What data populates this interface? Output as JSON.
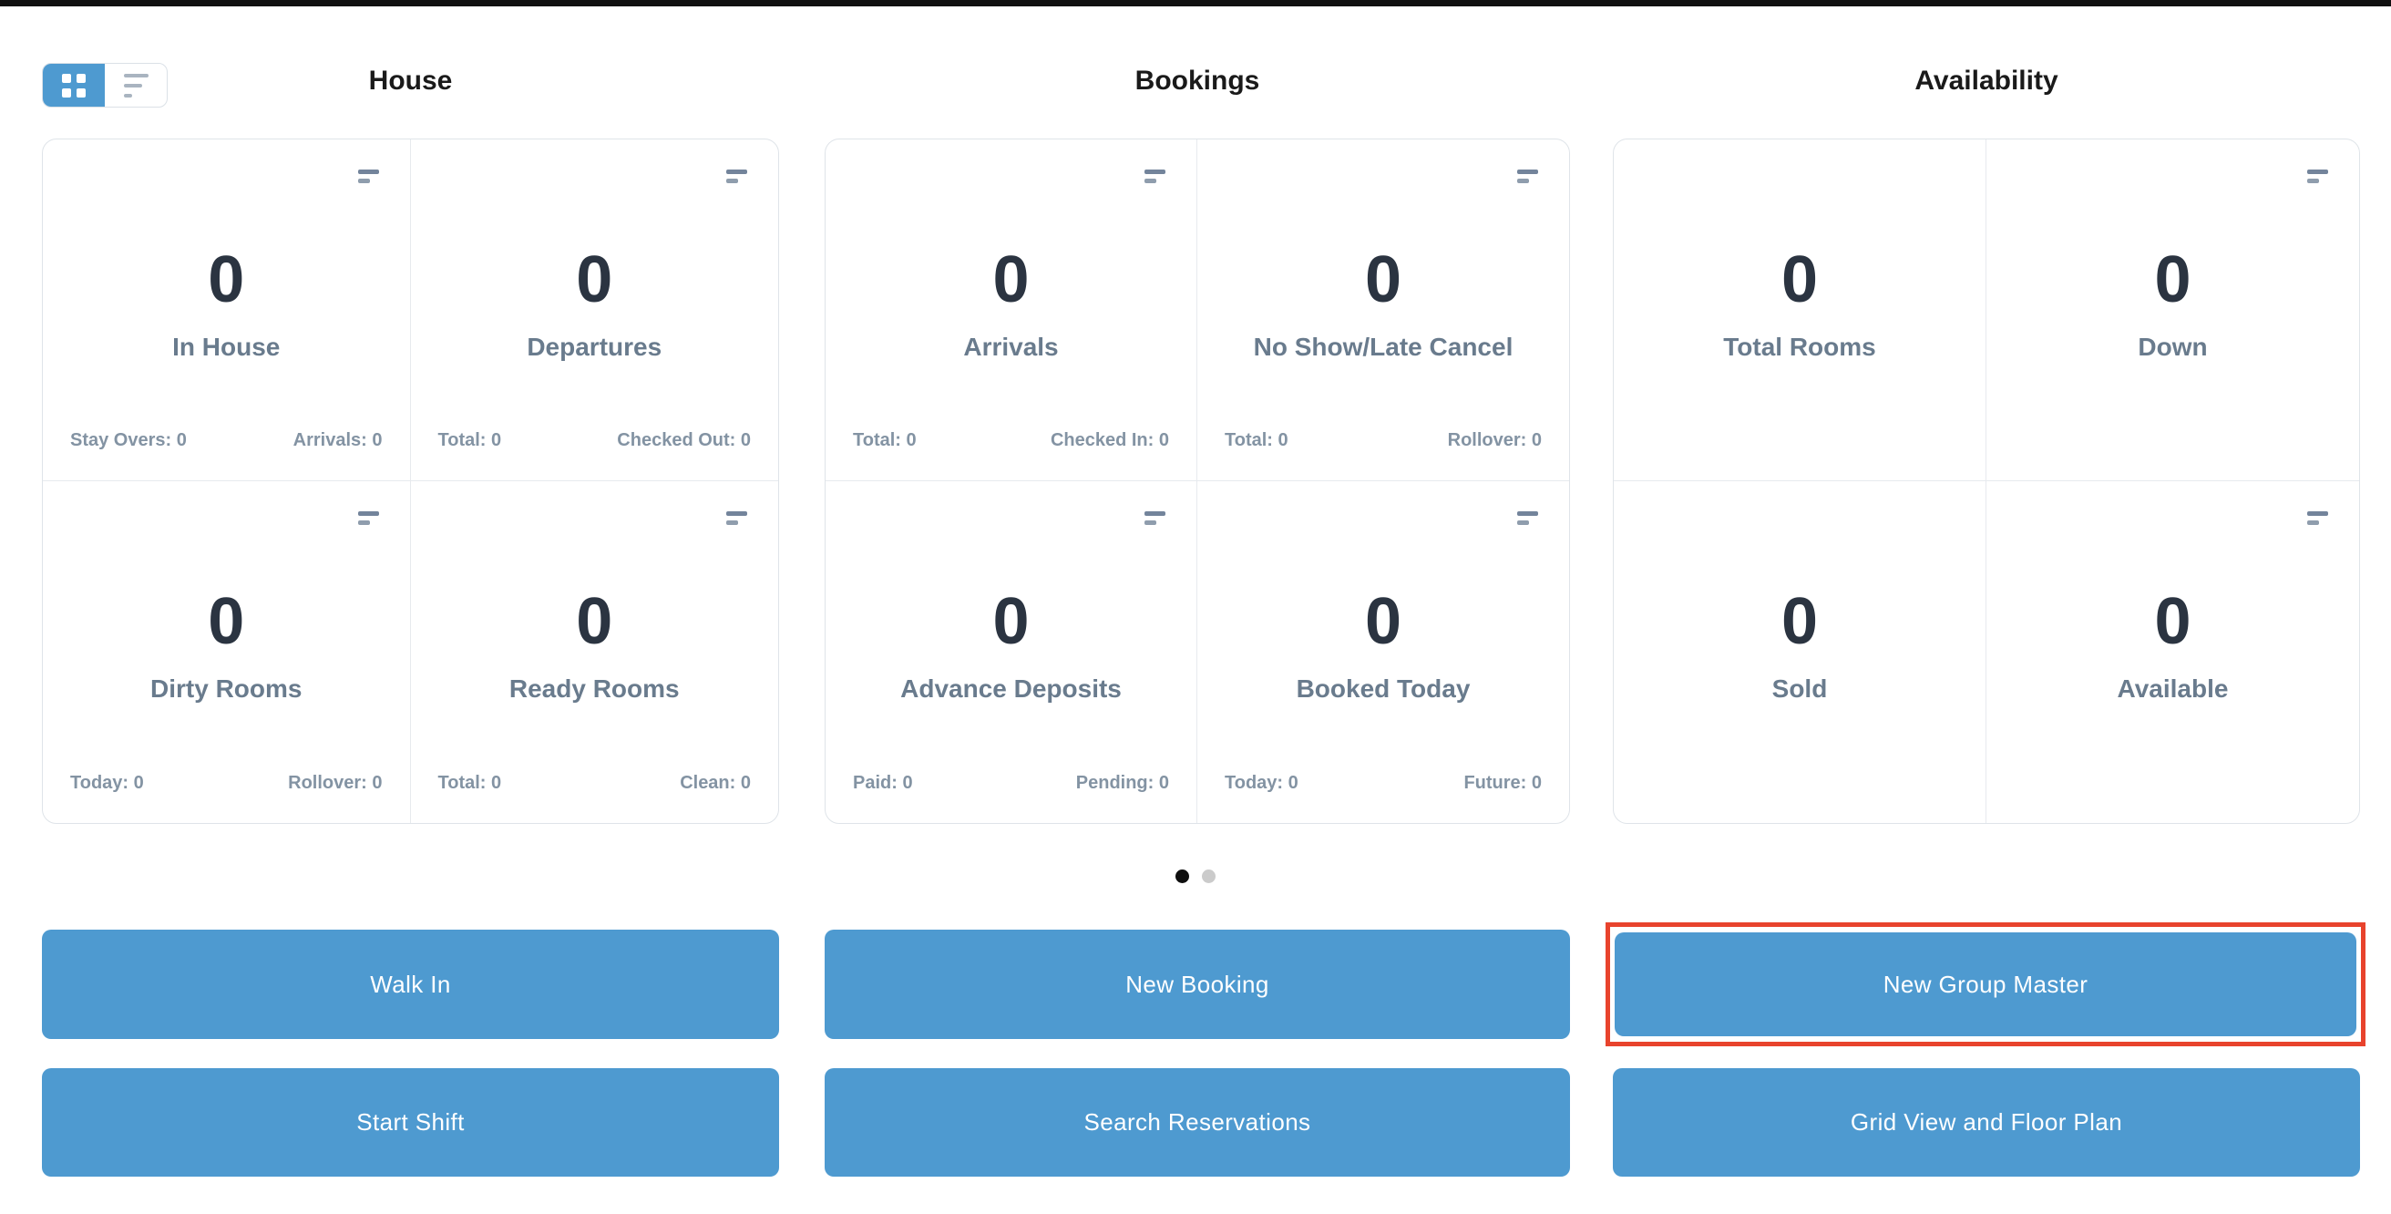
{
  "colors": {
    "accent_blue": "#4e9ad0",
    "value_text": "#2b3441",
    "label_text": "#697b8d",
    "stat_text": "#8393a3",
    "panel_border": "#dfe4e9",
    "annotation_red": "#e8432d",
    "top_bar": "#101010"
  },
  "view_toggle": {
    "active": "grid",
    "options": [
      "grid-view",
      "list-view"
    ]
  },
  "sections": [
    {
      "title": "House",
      "cards": [
        {
          "value": "0",
          "label": "In House",
          "stat_left": "Stay Overs: 0",
          "stat_right": "Arrivals: 0"
        },
        {
          "value": "0",
          "label": "Departures",
          "stat_left": "Total: 0",
          "stat_right": "Checked Out: 0"
        },
        {
          "value": "0",
          "label": "Dirty Rooms",
          "stat_left": "Today: 0",
          "stat_right": "Rollover: 0"
        },
        {
          "value": "0",
          "label": "Ready Rooms",
          "stat_left": "Total: 0",
          "stat_right": "Clean: 0"
        }
      ]
    },
    {
      "title": "Bookings",
      "cards": [
        {
          "value": "0",
          "label": "Arrivals",
          "stat_left": "Total: 0",
          "stat_right": "Checked In: 0"
        },
        {
          "value": "0",
          "label": "No Show/Late Cancel",
          "stat_left": "Total: 0",
          "stat_right": "Rollover: 0"
        },
        {
          "value": "0",
          "label": "Advance Deposits",
          "stat_left": "Paid: 0",
          "stat_right": "Pending: 0"
        },
        {
          "value": "0",
          "label": "Booked Today",
          "stat_left": "Today: 0",
          "stat_right": "Future: 0"
        }
      ]
    },
    {
      "title": "Availability",
      "cards": [
        {
          "value": "0",
          "label": "Total Rooms"
        },
        {
          "value": "0",
          "label": "Down"
        },
        {
          "value": "0",
          "label": "Sold"
        },
        {
          "value": "0",
          "label": "Available"
        }
      ]
    }
  ],
  "carousel": {
    "page_count": 2,
    "active_index": 0
  },
  "buttons": {
    "row1": [
      "Walk In",
      "New Booking",
      "New Group Master"
    ],
    "row2": [
      "Start Shift",
      "Search Reservations",
      "Grid View and Floor Plan"
    ]
  },
  "annotation": {
    "highlighted_button": "New Group Master"
  }
}
